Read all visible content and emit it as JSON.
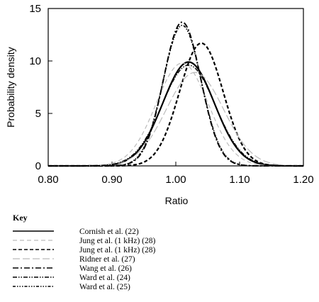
{
  "chart_data": {
    "type": "line",
    "xlabel": "Ratio",
    "ylabel": "Probability density",
    "xlim": [
      0.8,
      1.2
    ],
    "ylim": [
      0,
      15
    ],
    "xticks": [
      "0.80",
      "0.90",
      "1.00",
      "1.10",
      "1.20"
    ],
    "yticks": [
      "0",
      "5",
      "10",
      "15"
    ],
    "legend": {
      "title": "Key",
      "placement": "below"
    },
    "series": [
      {
        "name": "Cornish et al. (22)",
        "style": "solid",
        "color": "#000000",
        "mean": 1.02,
        "peak": 9.9
      },
      {
        "name": "Jung et al. (1 kHz) (28)",
        "style": "light-dashed",
        "color": "#bbbbbb",
        "mean": 1.01,
        "peak": 9.8
      },
      {
        "name": "Jung et al. (1 kHz) (28)",
        "style": "dashed",
        "color": "#000000",
        "mean": 1.04,
        "peak": 11.7
      },
      {
        "name": "Ridner et al. (27)",
        "style": "light-long-dash",
        "color": "#bbbbbb",
        "mean": 1.03,
        "peak": 8.9
      },
      {
        "name": "Wang et al. (26)",
        "style": "dash-dot",
        "color": "#000000",
        "mean": 1.01,
        "peak": 13.7
      },
      {
        "name": "Ward et al. (24)",
        "style": "dash-dot-dot",
        "color": "#000000",
        "mean": 1.02,
        "peak": 9.6
      },
      {
        "name": "Ward et al. (25)",
        "style": "dash-dot-dot-dense",
        "color": "#000000",
        "mean": 1.01,
        "peak": 13.4
      }
    ]
  }
}
